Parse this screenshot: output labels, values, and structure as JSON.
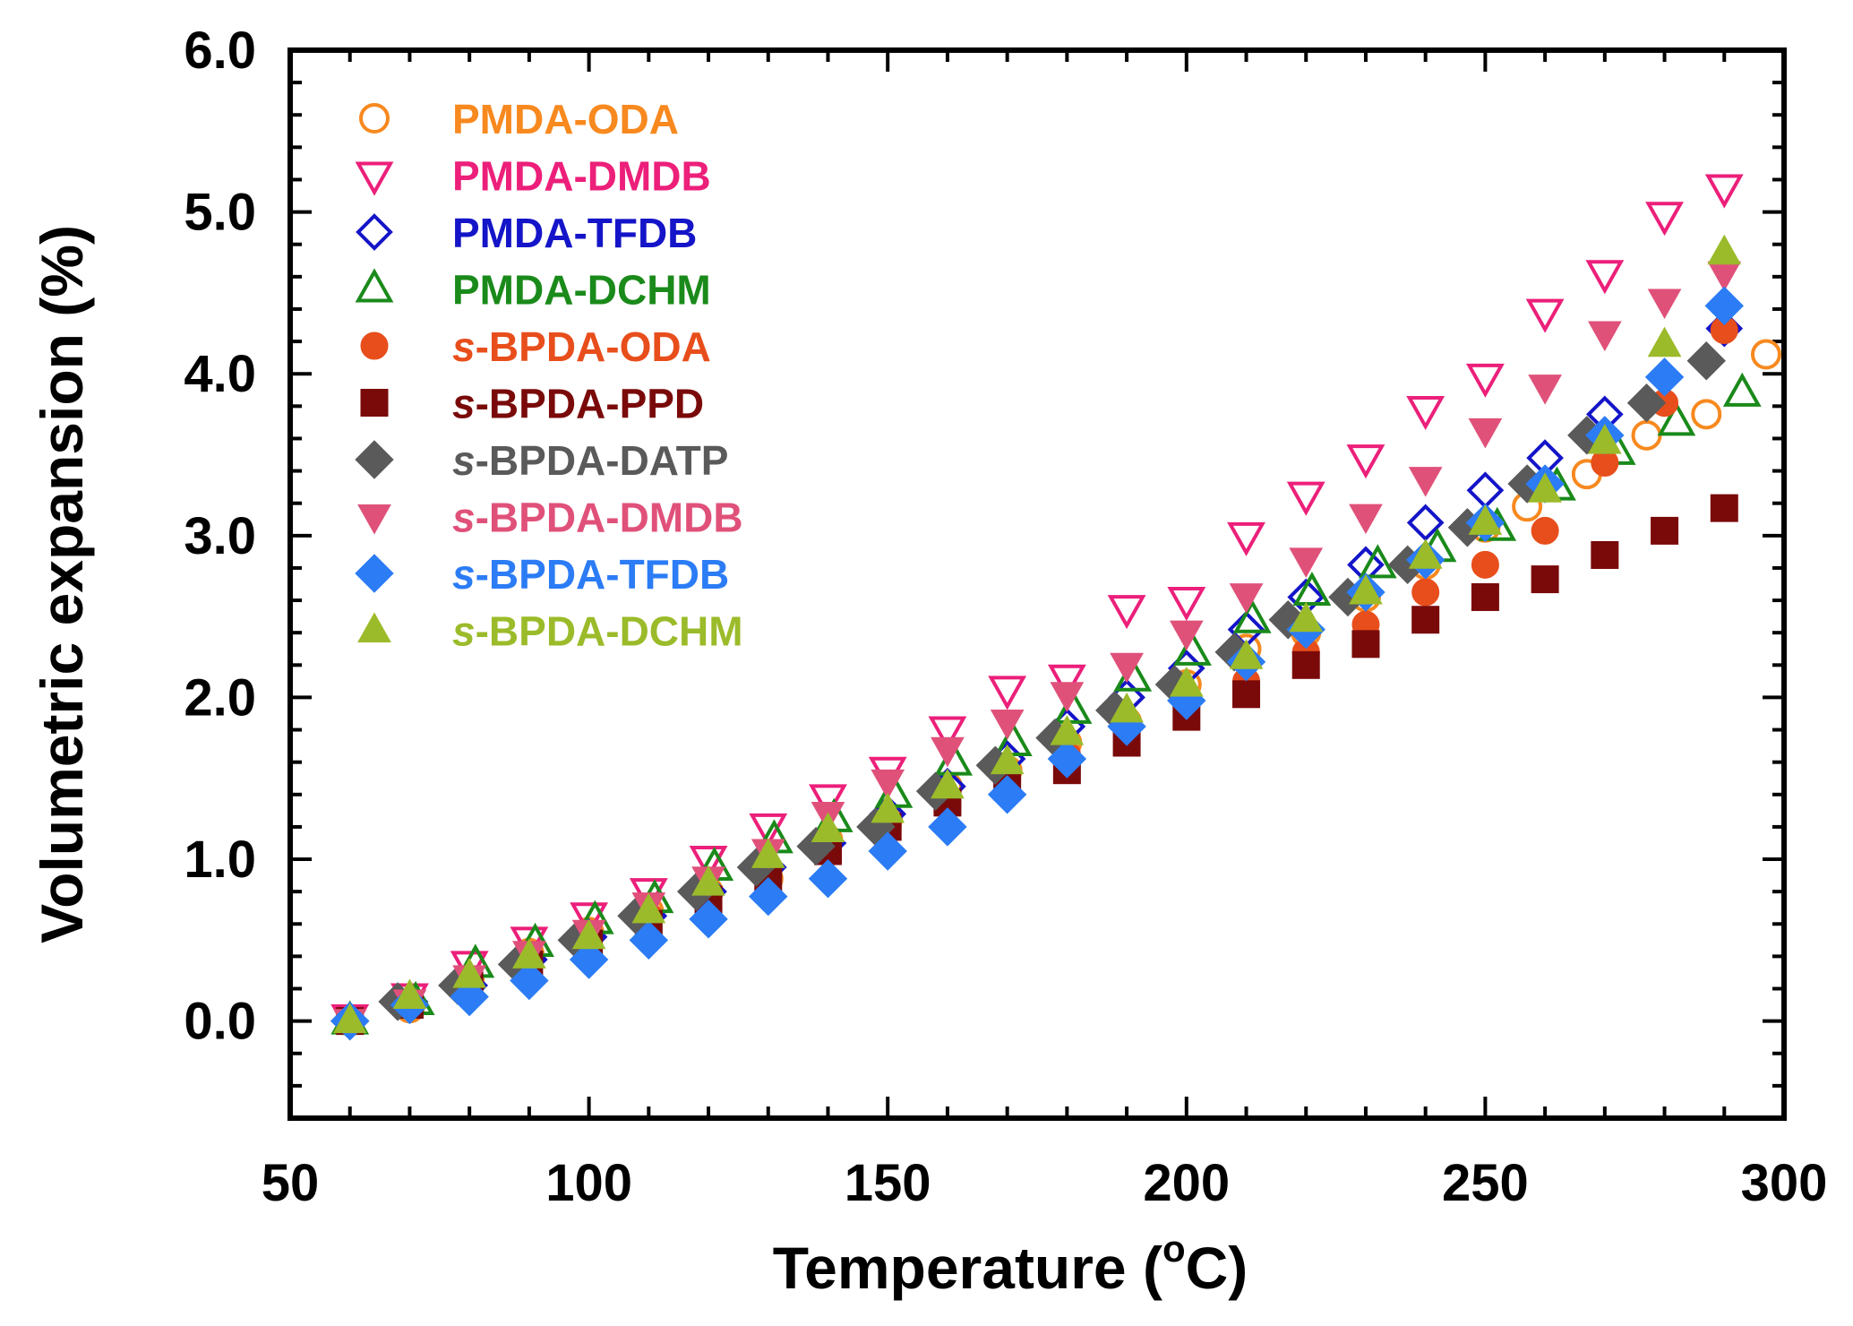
{
  "chart_data": {
    "type": "scatter",
    "title": "",
    "xlabel": "Temperature (",
    "xlabel_sup": "o",
    "xlabel_tail": "C)",
    "ylabel": "Volumetric expansion (%)",
    "xlim": [
      50,
      300
    ],
    "ylim": [
      -0.6,
      6.0
    ],
    "xticks": [
      "50",
      "100",
      "150",
      "200",
      "250",
      "300"
    ],
    "yticks": [
      "0.0",
      "1.0",
      "2.0",
      "3.0",
      "4.0",
      "5.0",
      "6.0"
    ],
    "legend_position": "top-left",
    "series": [
      {
        "name": "PMDA-ODA",
        "prefix": "",
        "color": "#F7891F",
        "marker": "circle-open",
        "x": [
          60,
          70,
          80,
          90,
          100,
          110,
          120,
          130,
          140,
          150,
          160,
          170,
          180,
          190,
          200,
          210,
          220,
          230,
          240,
          250,
          257,
          267,
          277,
          287,
          297
        ],
        "y": [
          0.0,
          0.08,
          0.25,
          0.42,
          0.55,
          0.68,
          0.8,
          0.88,
          1.12,
          1.25,
          1.45,
          1.55,
          1.72,
          1.85,
          2.08,
          2.3,
          2.4,
          2.62,
          2.82,
          3.05,
          3.18,
          3.38,
          3.62,
          3.75,
          4.12
        ]
      },
      {
        "name": "PMDA-DMDB",
        "prefix": "",
        "color": "#EC1F7A",
        "marker": "triangle-down-open",
        "x": [
          60,
          70,
          80,
          90,
          100,
          110,
          120,
          130,
          140,
          150,
          160,
          170,
          180,
          190,
          200,
          210,
          220,
          230,
          240,
          250,
          260,
          270,
          280,
          290
        ],
        "y": [
          0.02,
          0.15,
          0.35,
          0.5,
          0.65,
          0.8,
          1.0,
          1.2,
          1.38,
          1.55,
          1.8,
          2.05,
          2.12,
          2.55,
          2.6,
          3.0,
          3.25,
          3.48,
          3.78,
          3.98,
          4.38,
          4.62,
          4.98,
          5.15
        ]
      },
      {
        "name": "PMDA-TFDB",
        "prefix": "",
        "color": "#1414C8",
        "marker": "diamond-open",
        "x": [
          60,
          70,
          80,
          90,
          100,
          110,
          120,
          130,
          140,
          150,
          160,
          170,
          180,
          190,
          200,
          210,
          220,
          230,
          240,
          250,
          260,
          270,
          280,
          290
        ],
        "y": [
          0.0,
          0.12,
          0.22,
          0.38,
          0.52,
          0.65,
          0.8,
          0.95,
          1.1,
          1.28,
          1.45,
          1.62,
          1.82,
          2.0,
          2.18,
          2.42,
          2.62,
          2.82,
          3.08,
          3.28,
          3.48,
          3.75,
          3.98,
          4.28
        ]
      },
      {
        "name": "PMDA-DCHM",
        "prefix": "",
        "color": "#1A8A1A",
        "marker": "triangle-up-open",
        "x": [
          60,
          71,
          81,
          91,
          101,
          111,
          121,
          131,
          141,
          151,
          161,
          171,
          181,
          191,
          201,
          211,
          221,
          232,
          242,
          252,
          262,
          272,
          282,
          293
        ],
        "y": [
          0.0,
          0.12,
          0.35,
          0.48,
          0.62,
          0.75,
          0.95,
          1.12,
          1.25,
          1.4,
          1.6,
          1.72,
          1.92,
          2.12,
          2.28,
          2.48,
          2.65,
          2.82,
          2.92,
          3.05,
          3.3,
          3.52,
          3.7,
          3.88
        ]
      },
      {
        "name": "BPDA-ODA",
        "prefix": "s",
        "color": "#E84E1B",
        "marker": "circle",
        "x": [
          60,
          70,
          80,
          90,
          100,
          110,
          120,
          130,
          140,
          150,
          160,
          170,
          180,
          190,
          200,
          210,
          220,
          230,
          240,
          250,
          260,
          270,
          280,
          290
        ],
        "y": [
          0.0,
          0.12,
          0.25,
          0.4,
          0.52,
          0.65,
          0.78,
          0.9,
          1.05,
          1.2,
          1.35,
          1.5,
          1.65,
          1.8,
          1.95,
          2.1,
          2.28,
          2.45,
          2.65,
          2.82,
          3.03,
          3.45,
          3.82,
          4.27
        ]
      },
      {
        "name": "BPDA-PPD",
        "prefix": "s",
        "color": "#7A0A0A",
        "marker": "square",
        "x": [
          60,
          70,
          80,
          90,
          100,
          110,
          120,
          130,
          140,
          150,
          160,
          170,
          180,
          190,
          200,
          210,
          220,
          230,
          240,
          250,
          260,
          270,
          280,
          290
        ],
        "y": [
          0.0,
          0.1,
          0.22,
          0.35,
          0.48,
          0.6,
          0.75,
          0.88,
          1.05,
          1.2,
          1.35,
          1.45,
          1.55,
          1.72,
          1.88,
          2.02,
          2.2,
          2.33,
          2.48,
          2.62,
          2.73,
          2.88,
          3.03,
          3.17
        ]
      },
      {
        "name": "BPDA-DATP",
        "prefix": "s",
        "color": "#5A5A5A",
        "marker": "diamond",
        "x": [
          60,
          68,
          78,
          88,
          98,
          108,
          118,
          128,
          138,
          148,
          158,
          168,
          178,
          188,
          198,
          208,
          217,
          227,
          237,
          247,
          257,
          267,
          277,
          287
        ],
        "y": [
          0.0,
          0.12,
          0.22,
          0.35,
          0.5,
          0.65,
          0.8,
          0.95,
          1.08,
          1.2,
          1.42,
          1.58,
          1.75,
          1.92,
          2.08,
          2.28,
          2.48,
          2.62,
          2.82,
          3.05,
          3.32,
          3.62,
          3.82,
          4.08
        ]
      },
      {
        "name": "BPDA-DMDB",
        "prefix": "s",
        "color": "#E0517A",
        "marker": "triangle-down",
        "x": [
          60,
          70,
          80,
          90,
          100,
          110,
          120,
          130,
          140,
          150,
          160,
          170,
          180,
          190,
          200,
          210,
          220,
          230,
          240,
          250,
          260,
          270,
          280,
          290
        ],
        "y": [
          0.0,
          0.12,
          0.27,
          0.42,
          0.55,
          0.72,
          0.88,
          1.05,
          1.28,
          1.48,
          1.68,
          1.85,
          2.02,
          2.2,
          2.4,
          2.63,
          2.85,
          3.12,
          3.35,
          3.65,
          3.92,
          4.25,
          4.45,
          4.62
        ]
      },
      {
        "name": "BPDA-TFDB",
        "prefix": "s",
        "color": "#2B7CF5",
        "marker": "diamond",
        "x": [
          60,
          70,
          80,
          90,
          100,
          110,
          120,
          130,
          140,
          150,
          160,
          170,
          180,
          190,
          200,
          210,
          220,
          230,
          240,
          250,
          260,
          270,
          280,
          290
        ],
        "y": [
          0.0,
          0.1,
          0.15,
          0.25,
          0.38,
          0.5,
          0.63,
          0.77,
          0.88,
          1.05,
          1.2,
          1.4,
          1.62,
          1.82,
          1.98,
          2.22,
          2.42,
          2.65,
          2.85,
          3.08,
          3.32,
          3.62,
          3.98,
          4.42
        ]
      },
      {
        "name": "BPDA-DCHM",
        "prefix": "s",
        "color": "#9BBB2A",
        "marker": "triangle-up",
        "x": [
          60,
          70,
          80,
          90,
          100,
          110,
          120,
          130,
          140,
          150,
          160,
          170,
          180,
          190,
          200,
          210,
          220,
          230,
          240,
          250,
          260,
          270,
          280,
          290
        ],
        "y": [
          0.0,
          0.15,
          0.28,
          0.4,
          0.52,
          0.68,
          0.85,
          1.02,
          1.18,
          1.3,
          1.45,
          1.6,
          1.78,
          1.92,
          2.08,
          2.25,
          2.48,
          2.65,
          2.87,
          3.08,
          3.28,
          3.58,
          4.18,
          4.75
        ]
      }
    ]
  }
}
